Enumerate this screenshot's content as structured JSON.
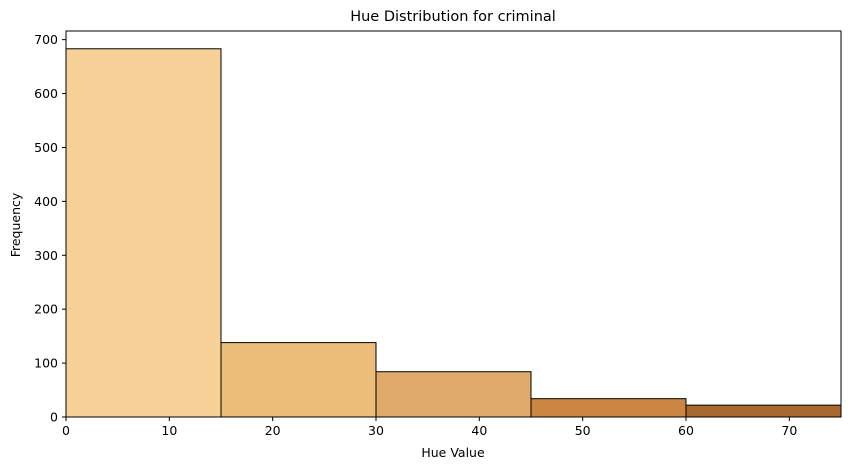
{
  "chart_data": {
    "type": "bar",
    "title": "Hue Distribution for criminal",
    "xlabel": "Hue Value",
    "ylabel": "Frequency",
    "xlim": [
      0,
      75
    ],
    "ylim": [
      0,
      716
    ],
    "xticks": [
      0,
      10,
      20,
      30,
      40,
      50,
      60,
      70
    ],
    "yticks": [
      0,
      100,
      200,
      300,
      400,
      500,
      600,
      700
    ],
    "grid": false,
    "bins": [
      {
        "x0": 0,
        "x1": 15,
        "value": 683,
        "color": "#f8d199"
      },
      {
        "x0": 15,
        "x1": 30,
        "value": 138,
        "color": "#edbd7a"
      },
      {
        "x0": 30,
        "x1": 45,
        "value": 84,
        "color": "#dfaa6a"
      },
      {
        "x0": 45,
        "x1": 60,
        "value": 34,
        "color": "#cb8643"
      },
      {
        "x0": 60,
        "x1": 75,
        "value": 22,
        "color": "#a7692f"
      }
    ]
  }
}
